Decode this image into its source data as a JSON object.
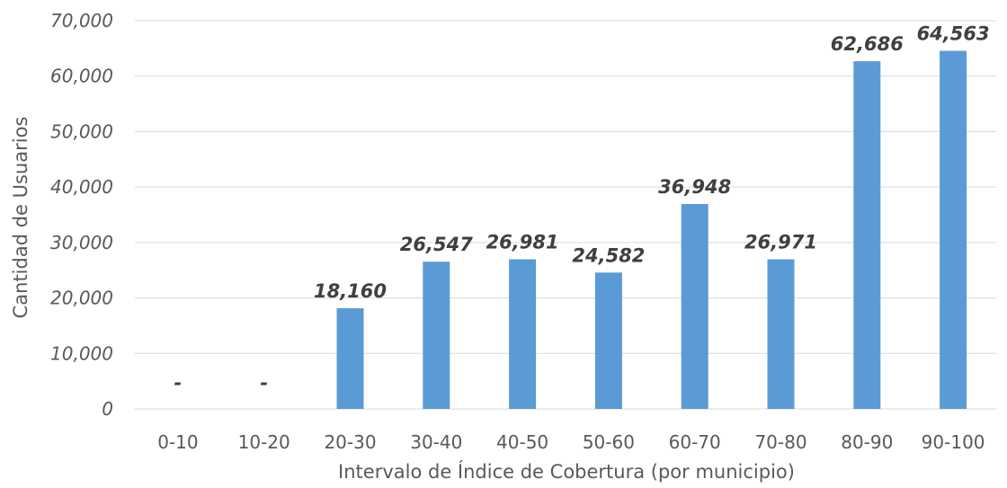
{
  "chart_data": {
    "type": "bar",
    "xlabel": "Intervalo de Índice de Cobertura (por municipio)",
    "ylabel": "Cantidad de Usuarios",
    "categories": [
      "0-10",
      "10-20",
      "20-30",
      "30-40",
      "40-50",
      "50-60",
      "60-70",
      "70-80",
      "80-90",
      "90-100"
    ],
    "values": [
      0,
      0,
      18160,
      26547,
      26981,
      24582,
      36948,
      26971,
      62686,
      64563
    ],
    "data_labels": [
      "-",
      "-",
      "18,160",
      "26,547",
      "26,981",
      "24,582",
      "36,948",
      "26,971",
      "62,686",
      "64,563"
    ],
    "ylim": [
      0,
      70000
    ],
    "yticks": [
      "0",
      "10,000",
      "20,000",
      "30,000",
      "40,000",
      "50,000",
      "60,000",
      "70,000"
    ],
    "grid": true,
    "bar_color": "#5b9bd5"
  }
}
